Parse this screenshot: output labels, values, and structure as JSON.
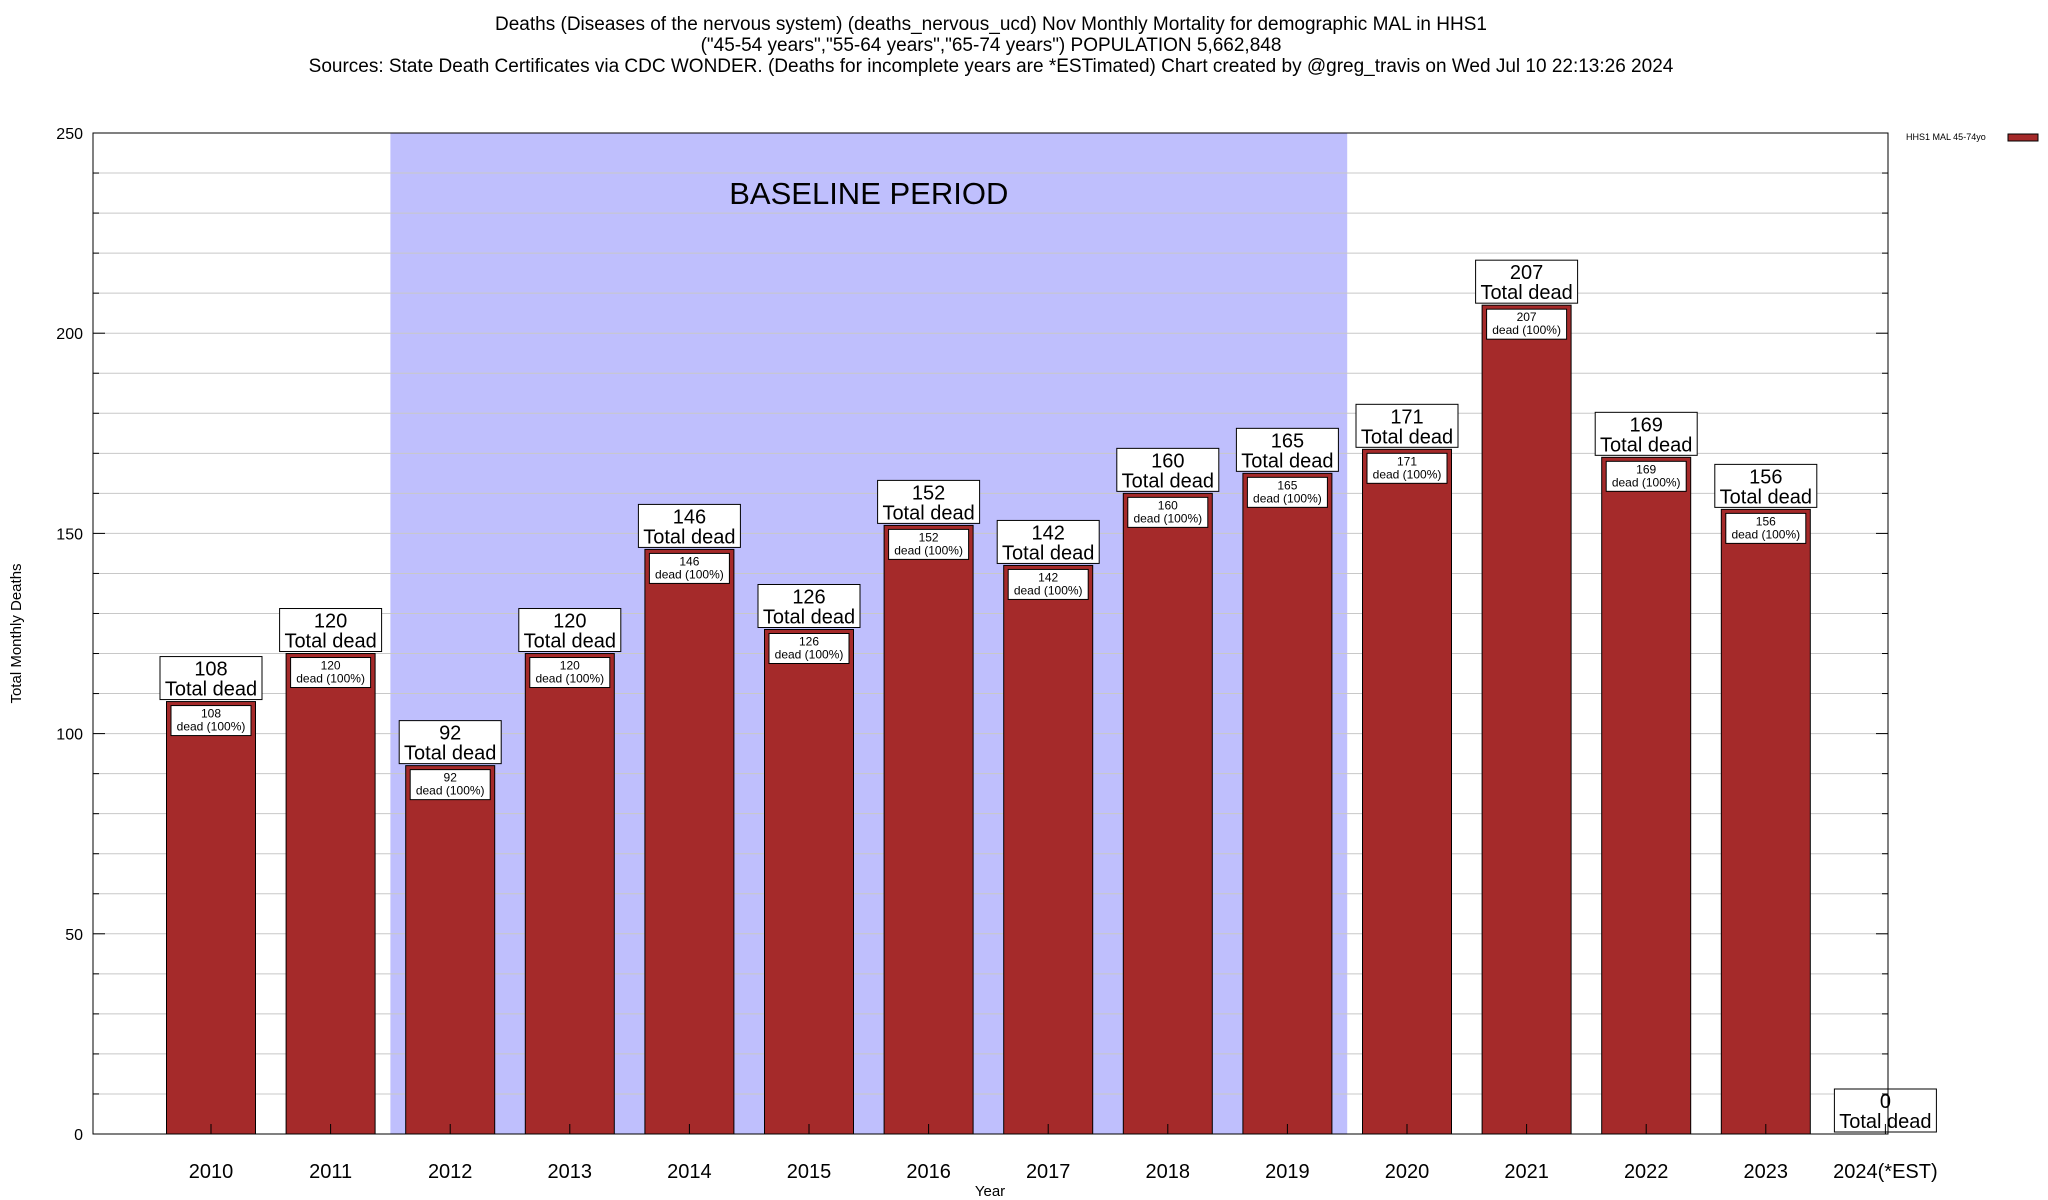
{
  "chart_data": {
    "type": "bar",
    "title_lines": [
      "Deaths (Diseases of the nervous system) (deaths_nervous_ucd) Nov Monthly Mortality for demographic MAL in HHS1",
      "(\"45-54 years\",\"55-64 years\",\"65-74 years\") POPULATION 5,662,848",
      "Sources: State Death Certificates via CDC WONDER. (Deaths for incomplete years are *ESTimated)                Chart created by @greg_travis on Wed Jul 10 22:13:26 2024"
    ],
    "xlabel": "Year",
    "ylabel": "Total Monthly Deaths",
    "ylim": [
      0,
      250
    ],
    "yticks": [
      0,
      50,
      100,
      150,
      200,
      250
    ],
    "grid": true,
    "legend": {
      "position": "top-right",
      "entries": [
        "HHS1 MAL 45-74yo"
      ]
    },
    "bar_color": "#a52a2a",
    "baseline": {
      "label": "BASELINE PERIOD",
      "from": "2012",
      "to": "2019",
      "color": "#bfbffd"
    },
    "categories": [
      "2010",
      "2011",
      "2012",
      "2013",
      "2014",
      "2015",
      "2016",
      "2017",
      "2018",
      "2019",
      "2020",
      "2021",
      "2022",
      "2023",
      "2024(*EST)"
    ],
    "series": [
      {
        "name": "HHS1 MAL 45-74yo",
        "values": [
          108,
          120,
          92,
          120,
          146,
          126,
          152,
          142,
          160,
          165,
          171,
          207,
          169,
          156,
          0
        ]
      }
    ],
    "total_label": "Total dead",
    "inner_label": "dead (100%)"
  }
}
